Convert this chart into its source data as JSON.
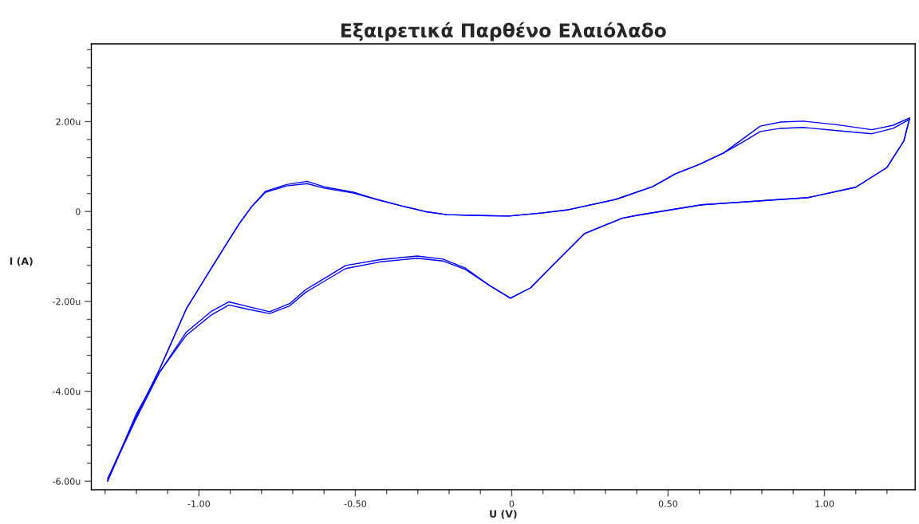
{
  "chart_data": {
    "type": "line",
    "title": "Εξαιρετικά Παρθένο Ελαιόλαδο",
    "xlabel": "U (V)",
    "ylabel": "I (A)",
    "series": [
      {
        "color": "#0000ff",
        "x": [
          -1.292,
          -1.21,
          -1.126,
          -1.04,
          -0.955,
          -0.91,
          -0.87,
          -0.83,
          -0.787,
          -0.72,
          -0.654,
          -0.6,
          -0.506,
          -0.432,
          -0.35,
          -0.277,
          -0.208,
          -0.1,
          -0.009,
          0.1,
          0.182,
          0.333,
          0.45,
          0.524,
          0.6,
          0.677,
          0.74,
          0.795,
          0.86,
          0.932,
          1.04,
          1.152,
          1.22,
          1.272
        ],
        "values": [
          -6.0,
          -4.7,
          -3.51,
          -2.16,
          -1.2,
          -0.7,
          -0.26,
          0.12,
          0.45,
          0.6,
          0.67,
          0.55,
          0.43,
          0.27,
          0.12,
          0.0,
          -0.07,
          -0.09,
          -0.1,
          -0.03,
          0.04,
          0.27,
          0.55,
          0.84,
          1.05,
          1.3,
          1.62,
          1.9,
          1.99,
          2.01,
          1.93,
          1.82,
          1.92,
          2.08
        ]
      },
      {
        "color": "#0000ff",
        "x": [
          -1.292,
          -1.21,
          -1.126,
          -1.04,
          -0.955,
          -0.91,
          -0.87,
          -0.83,
          -0.787,
          -0.72,
          -0.654,
          -0.6,
          -0.506,
          -0.432,
          -0.35,
          -0.277,
          -0.208,
          -0.1,
          -0.009,
          0.1,
          0.182,
          0.333,
          0.45,
          0.524,
          0.6,
          0.677,
          0.74,
          0.795,
          0.86,
          0.932,
          1.04,
          1.152,
          1.22,
          1.272
        ],
        "values": [
          -5.95,
          -4.7,
          -3.51,
          -2.16,
          -1.2,
          -0.7,
          -0.26,
          0.12,
          0.43,
          0.57,
          0.62,
          0.52,
          0.41,
          0.27,
          0.12,
          0.0,
          -0.07,
          -0.09,
          -0.1,
          -0.03,
          0.04,
          0.27,
          0.55,
          0.84,
          1.05,
          1.3,
          1.55,
          1.78,
          1.85,
          1.87,
          1.8,
          1.73,
          1.85,
          2.05
        ]
      },
      {
        "color": "#0000ff",
        "x": [
          -1.292,
          -1.2,
          -1.126,
          -1.04,
          -0.96,
          -0.904,
          -0.84,
          -0.774,
          -0.71,
          -0.659,
          -0.616,
          -0.531,
          -0.42,
          -0.302,
          -0.22,
          -0.148,
          -0.07,
          -0.004,
          0.06,
          0.131,
          0.233,
          0.353,
          0.404,
          0.608,
          0.948,
          1.1,
          1.2,
          1.254,
          1.272
        ],
        "values": [
          -6.0,
          -4.5,
          -3.58,
          -2.68,
          -2.22,
          -2.01,
          -2.12,
          -2.23,
          -2.05,
          -1.74,
          -1.56,
          -1.2,
          -1.07,
          -0.99,
          -1.06,
          -1.26,
          -1.65,
          -1.93,
          -1.7,
          -1.2,
          -0.49,
          -0.15,
          -0.08,
          0.15,
          0.31,
          0.54,
          0.98,
          1.57,
          2.08
        ]
      },
      {
        "color": "#0000ff",
        "x": [
          -1.292,
          -1.2,
          -1.126,
          -1.04,
          -0.96,
          -0.904,
          -0.84,
          -0.774,
          -0.71,
          -0.659,
          -0.616,
          -0.531,
          -0.42,
          -0.302,
          -0.22,
          -0.148,
          -0.07,
          -0.004,
          0.06,
          0.131,
          0.233,
          0.353,
          0.404,
          0.608,
          0.948,
          1.1,
          1.2,
          1.254,
          1.272
        ],
        "values": [
          -5.95,
          -4.6,
          -3.58,
          -2.75,
          -2.3,
          -2.08,
          -2.18,
          -2.27,
          -2.1,
          -1.8,
          -1.62,
          -1.27,
          -1.12,
          -1.04,
          -1.1,
          -1.29,
          -1.65,
          -1.93,
          -1.7,
          -1.2,
          -0.49,
          -0.15,
          -0.08,
          0.15,
          0.31,
          0.54,
          0.98,
          1.57,
          2.05
        ]
      }
    ],
    "xlim": [
      -1.344,
      1.29
    ],
    "ylim": [
      -6.19,
      3.73
    ],
    "xticks": [
      {
        "value": -1.3,
        "label": null
      },
      {
        "value": -1.2,
        "label": null
      },
      {
        "value": -1.1,
        "label": null
      },
      {
        "value": -1.0,
        "label": "-1.00"
      },
      {
        "value": -0.9,
        "label": null
      },
      {
        "value": -0.8,
        "label": null
      },
      {
        "value": -0.7,
        "label": null
      },
      {
        "value": -0.6,
        "label": null
      },
      {
        "value": -0.5,
        "label": "-0.50"
      },
      {
        "value": -0.4,
        "label": null
      },
      {
        "value": -0.3,
        "label": null
      },
      {
        "value": -0.2,
        "label": null
      },
      {
        "value": -0.1,
        "label": null
      },
      0,
      {
        "value": 0.1,
        "label": null
      },
      {
        "value": 0.2,
        "label": null
      },
      {
        "value": 0.3,
        "label": null
      },
      {
        "value": 0.4,
        "label": null
      },
      {
        "value": 0.5,
        "label": "0.50"
      },
      {
        "value": 0.6,
        "label": null
      },
      {
        "value": 0.7,
        "label": null
      },
      {
        "value": 0.8,
        "label": null
      },
      {
        "value": 0.9,
        "label": null
      },
      {
        "value": 1.0,
        "label": "1.00"
      },
      {
        "value": 1.1,
        "label": null
      },
      {
        "value": 1.2,
        "label": null
      }
    ],
    "yticks": [
      {
        "value": -6,
        "label": "-6.00u"
      },
      {
        "value": -5.6,
        "label": null
      },
      {
        "value": -5.2,
        "label": null
      },
      {
        "value": -4.8,
        "label": null
      },
      {
        "value": -4.4,
        "label": null
      },
      {
        "value": -4,
        "label": "-4.00u"
      },
      {
        "value": -3.6,
        "label": null
      },
      {
        "value": -3.2,
        "label": null
      },
      {
        "value": -2.8,
        "label": null
      },
      {
        "value": -2.4,
        "label": null
      },
      {
        "value": -2,
        "label": "-2.00u"
      },
      {
        "value": -1.6,
        "label": null
      },
      {
        "value": -1.2,
        "label": null
      },
      {
        "value": -0.8,
        "label": null
      },
      {
        "value": -0.4,
        "label": null
      },
      0,
      {
        "value": 0.4,
        "label": null
      },
      {
        "value": 0.8,
        "label": null
      },
      {
        "value": 1.2,
        "label": null
      },
      {
        "value": 1.6,
        "label": null
      },
      {
        "value": 2,
        "label": "2.00u"
      },
      {
        "value": 2.4,
        "label": null
      },
      {
        "value": 2.8,
        "label": null
      },
      {
        "value": 3.2,
        "label": null
      },
      {
        "value": 3.6,
        "label": null
      }
    ],
    "grid": false,
    "legend": false,
    "marker": "none",
    "line_style": "solid"
  }
}
